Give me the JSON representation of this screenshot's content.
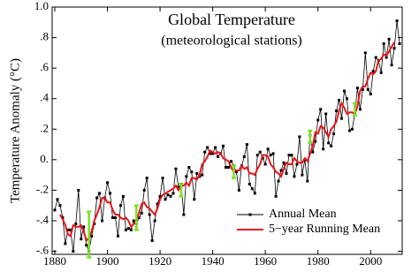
{
  "chart_data": {
    "type": "line",
    "title": "Global Temperature",
    "subtitle": "(meteorological stations)",
    "y_label": "Temperature Anomaly (°C)",
    "xlim": [
      1879,
      2012
    ],
    "ylim": [
      -0.62,
      1.0
    ],
    "xticks": [
      1880,
      1900,
      1920,
      1940,
      1960,
      1980,
      2000
    ],
    "yticks": [
      {
        "value": 1.0,
        "label": "1.0"
      },
      {
        "value": 0.8,
        "label": ".8"
      },
      {
        "value": 0.6,
        "label": ".6"
      },
      {
        "value": 0.4,
        "label": ".4"
      },
      {
        "value": 0.2,
        "label": ".2"
      },
      {
        "value": 0,
        "label": "0."
      },
      {
        "value": -0.2,
        "label": "-.2"
      },
      {
        "value": -0.4,
        "label": "-.4"
      },
      {
        "value": -0.6,
        "label": "-.6"
      }
    ],
    "grid": false,
    "legend": "lower right",
    "x": [
      1880,
      1881,
      1882,
      1883,
      1884,
      1885,
      1886,
      1887,
      1888,
      1889,
      1890,
      1891,
      1892,
      1893,
      1894,
      1895,
      1896,
      1897,
      1898,
      1899,
      1900,
      1901,
      1902,
      1903,
      1904,
      1905,
      1906,
      1907,
      1908,
      1909,
      1910,
      1911,
      1912,
      1913,
      1914,
      1915,
      1916,
      1917,
      1918,
      1919,
      1920,
      1921,
      1922,
      1923,
      1924,
      1925,
      1926,
      1927,
      1928,
      1929,
      1930,
      1931,
      1932,
      1933,
      1934,
      1935,
      1936,
      1937,
      1938,
      1939,
      1940,
      1941,
      1942,
      1943,
      1944,
      1945,
      1946,
      1947,
      1948,
      1949,
      1950,
      1951,
      1952,
      1953,
      1954,
      1955,
      1956,
      1957,
      1958,
      1959,
      1960,
      1961,
      1962,
      1963,
      1964,
      1965,
      1966,
      1967,
      1968,
      1969,
      1970,
      1971,
      1972,
      1973,
      1974,
      1975,
      1976,
      1977,
      1978,
      1979,
      1980,
      1981,
      1982,
      1983,
      1984,
      1985,
      1986,
      1987,
      1988,
      1989,
      1990,
      1991,
      1992,
      1993,
      1994,
      1995,
      1996,
      1997,
      1998,
      1999,
      2000,
      2001,
      2002,
      2003,
      2004,
      2005,
      2006,
      2007,
      2008,
      2009,
      2010,
      2011
    ],
    "series": [
      {
        "name": "Annual Mean",
        "color": "#000000",
        "marker": "square",
        "values": [
          -0.33,
          -0.26,
          -0.3,
          -0.38,
          -0.55,
          -0.46,
          -0.46,
          -0.6,
          -0.42,
          -0.2,
          -0.52,
          -0.44,
          -0.56,
          -0.6,
          -0.5,
          -0.42,
          -0.25,
          -0.22,
          -0.4,
          -0.25,
          -0.15,
          -0.22,
          -0.38,
          -0.38,
          -0.5,
          -0.3,
          -0.24,
          -0.46,
          -0.45,
          -0.46,
          -0.4,
          -0.42,
          -0.38,
          -0.35,
          -0.2,
          -0.12,
          -0.36,
          -0.53,
          -0.4,
          -0.29,
          -0.24,
          -0.12,
          -0.26,
          -0.23,
          -0.24,
          -0.22,
          -0.06,
          -0.18,
          -0.16,
          -0.36,
          -0.11,
          -0.05,
          -0.08,
          -0.26,
          -0.09,
          -0.11,
          -0.1,
          0.05,
          0.08,
          0.04,
          0.04,
          0.08,
          0.02,
          0.04,
          0.09,
          -0.05,
          -0.05,
          -0.01,
          -0.04,
          -0.08,
          -0.2,
          -0.04,
          0.02,
          0.1,
          -0.16,
          -0.19,
          -0.22,
          0.03,
          0.05,
          0.01,
          -0.03,
          0.07,
          0.03,
          0.04,
          -0.24,
          -0.14,
          -0.07,
          -0.02,
          -0.09,
          0.03,
          0.03,
          -0.11,
          -0.03,
          0.15,
          -0.1,
          0.0,
          -0.14,
          0.16,
          0.05,
          0.12,
          0.26,
          0.33,
          0.07,
          0.3,
          0.11,
          0.09,
          0.17,
          0.32,
          0.39,
          0.27,
          0.45,
          0.4,
          0.19,
          0.2,
          0.3,
          0.47,
          0.33,
          0.46,
          0.7,
          0.46,
          0.43,
          0.58,
          0.67,
          0.65,
          0.57,
          0.76,
          0.67,
          0.79,
          0.62,
          0.73,
          0.91,
          0.76
        ]
      },
      {
        "name": "5−year Running Mean",
        "color": "#e8141a",
        "values": [
          null,
          null,
          -0.36,
          -0.39,
          -0.43,
          -0.49,
          -0.5,
          -0.43,
          -0.44,
          -0.44,
          -0.43,
          -0.47,
          -0.53,
          -0.51,
          -0.47,
          -0.4,
          -0.36,
          -0.31,
          -0.25,
          -0.25,
          -0.28,
          -0.28,
          -0.33,
          -0.36,
          -0.36,
          -0.38,
          -0.39,
          -0.38,
          -0.4,
          -0.44,
          -0.42,
          -0.4,
          -0.35,
          -0.29,
          -0.28,
          -0.31,
          -0.32,
          -0.34,
          -0.36,
          -0.32,
          -0.26,
          -0.23,
          -0.22,
          -0.21,
          -0.2,
          -0.19,
          -0.17,
          -0.2,
          -0.17,
          -0.17,
          -0.15,
          -0.17,
          -0.12,
          -0.12,
          -0.13,
          -0.1,
          -0.03,
          -0.01,
          0.02,
          0.06,
          0.05,
          0.04,
          0.05,
          0.04,
          0.01,
          0.0,
          -0.01,
          -0.05,
          -0.08,
          -0.07,
          -0.07,
          -0.04,
          -0.06,
          -0.05,
          -0.09,
          -0.09,
          -0.1,
          -0.06,
          -0.03,
          0.03,
          0.03,
          0.02,
          -0.03,
          -0.05,
          -0.08,
          -0.09,
          -0.11,
          -0.06,
          -0.02,
          -0.03,
          -0.03,
          0.01,
          -0.01,
          -0.02,
          -0.02,
          0.01,
          -0.01,
          0.04,
          0.09,
          0.18,
          0.17,
          0.22,
          0.21,
          0.18,
          0.15,
          0.2,
          0.22,
          0.25,
          0.32,
          0.37,
          0.34,
          0.3,
          0.31,
          0.31,
          0.3,
          0.35,
          0.45,
          0.48,
          0.48,
          0.53,
          0.57,
          0.56,
          0.58,
          0.65,
          0.66,
          0.69,
          0.68,
          0.71,
          0.74,
          0.77,
          null,
          null
        ]
      }
    ],
    "error_bars": {
      "color": "#7ce02a",
      "x": [
        1893,
        1911,
        1928,
        1948,
        1977,
        1994
      ],
      "values": [
        -0.49,
        -0.38,
        -0.2,
        -0.08,
        0.15,
        0.33
      ],
      "errors": [
        0.15,
        0.08,
        0.04,
        0.04,
        0.04,
        0.04
      ]
    }
  }
}
